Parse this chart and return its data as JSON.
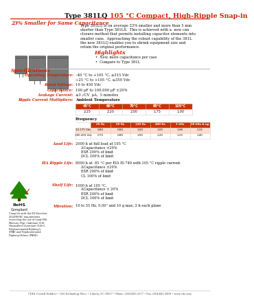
{
  "title_black": "Type 381LQ ",
  "title_red": "105 °C Compact, High-Ripple Snap-in",
  "subtitle": "23% Smaller for Same Capacitance",
  "bg_color": "#ffffff",
  "red_color": "#cc2200",
  "description": "Type 381LQ is on average 23% smaller and more than 5 mm\nshorter than Type 381LX.  This is achieved with a  new can\nclosure method that permits installing capacitor elements into\nsmaller cans.  Approaching the robust capability of the 381L\nthe new 381LQ enables you to shrink equipment size and\nretain the original performance.",
  "highlights_title": "Highlights",
  "highlights": [
    "New, more capacitance per case",
    "Compare to Type 381L"
  ],
  "specs_title": "Specifications",
  "op_temp": "–40 °C to +105 °C, ≤315 Vdc\n−25 °C to +105 °C, ≥350 Vdc",
  "rated_voltage": "10 to 450 Vdc",
  "capacitance": "100 μF to 100,000 μF ±20%",
  "leakage": "≤3 √CV  μA,  5 minutes",
  "amb_temp_headers": [
    "45°C",
    "60°C",
    "70°C",
    "85°C",
    "105°C"
  ],
  "amb_temp_values": [
    "2.25",
    "2.20",
    "2.00",
    "1.75",
    "1.00"
  ],
  "freq_header": "Frequency",
  "freq_headers": [
    "25 Hz",
    "50 Hz",
    "120 Hz",
    "400 Hz",
    "1 kHz",
    "10 kHz & up"
  ],
  "freq_row1_label": "10-175 Vdc",
  "freq_row1": [
    "0.80",
    "0.85",
    "1.00",
    "1.05",
    "1.08",
    "1.15"
  ],
  "freq_row2_label": "180-450 Vdc",
  "freq_row2": [
    "0.75",
    "0.80",
    "1.00",
    "1.20",
    "1.25",
    "1.40"
  ],
  "load_life_label": "Load Life:",
  "load_life_lines": [
    "2000 h at full load at 105 °C",
    "ΔCapacitance ±20%",
    "ESR 200% of limit",
    "DCL 100% of limit"
  ],
  "eia_label": "EIA Ripple Life:",
  "eia_lines": [
    "8000 h at  85 °C per EIA IS-749 with 105 °C ripple current.",
    "ΔCapacitance ±20%",
    "ESR 200% of limit",
    "CL 100% of limit"
  ],
  "shelf_label": "Shelf Life:",
  "shelf_lines": [
    "1000 h at 105 °C,",
    "ΔCapacitance ± 20%",
    "ESR 200% of limit",
    "DCL 100% of limit"
  ],
  "vib_label": "Vibration:",
  "vib": "10 to 55 Hz, 0.06\" and 10 g max, 2 h each plane",
  "rohs_text": [
    "Complies with the EU Directive",
    "2002/95/EC requirements",
    "restricting the use of Lead (Pb),",
    "Mercury (Hg), Cadmium (Cd),",
    "Hexavalent chromium (Cr6+),",
    "Polybrominated Biphenyls",
    "(PBB) and Polybrominated",
    "Diphenyl Ethers (PBDE)."
  ],
  "footer": "CDE4 Cornell Dubilier • 140 Technology Place • Liberty, SC 29657 • Phone: (864)843-2277 • Fax: (864)843-3800 • www.cde.com"
}
